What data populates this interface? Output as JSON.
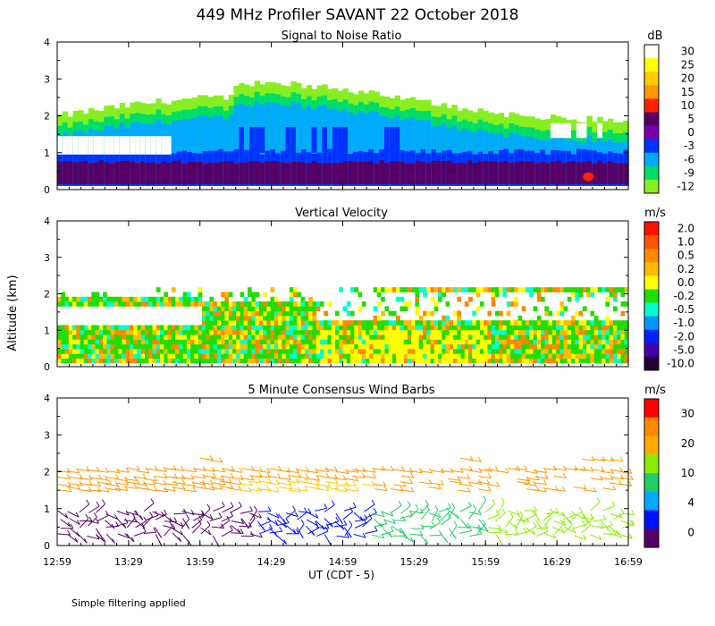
{
  "title": "449 MHz Profiler SAVANT 22 October 2018",
  "footnote": "Simple filtering applied",
  "ylabel": "Altitude (km)",
  "xlabel": "UT  (CDT - 5)",
  "x_ticks": [
    "12:59",
    "13:29",
    "13:59",
    "14:29",
    "14:59",
    "15:29",
    "15:59",
    "16:29",
    "16:59"
  ],
  "y_ticks": [
    "0",
    "1",
    "2",
    "3",
    "4"
  ],
  "chart_data": [
    {
      "type": "heatmap",
      "subtitle": "Signal to Noise Ratio",
      "unit": "dB",
      "x_range": [
        "12:59",
        "16:59"
      ],
      "y_range": [
        0,
        4
      ],
      "colorbar": {
        "labels": [
          "30",
          "25",
          "20",
          "15",
          "10",
          "5",
          "0",
          "-3",
          "-6",
          "-9",
          "-12"
        ],
        "colors": [
          "#ffffff",
          "#ffff00",
          "#ffcc00",
          "#ff9900",
          "#ff2200",
          "#550066",
          "#7700aa",
          "#0033ff",
          "#00aaff",
          "#00dd66",
          "#88ee22"
        ]
      },
      "layers": [
        {
          "label": "5",
          "bottom": 0.15,
          "top": 0.7,
          "color": "#550066"
        },
        {
          "label": "-3",
          "bottom": 0.1,
          "top": 0.9,
          "color": "#0033ff"
        },
        {
          "label": "-6",
          "bottom": 0.9,
          "top": 1.9,
          "color": "#00aaff"
        },
        {
          "label": "-9",
          "bottom": 1.8,
          "top": 2.3,
          "color": "#00dd66"
        },
        {
          "label": "-12",
          "bottom": 2.2,
          "top": 2.6,
          "color": "#88ee22"
        }
      ]
    },
    {
      "type": "heatmap",
      "subtitle": "Vertical Velocity",
      "unit": "m/s",
      "x_range": [
        "12:59",
        "16:59"
      ],
      "y_range": [
        0,
        4
      ],
      "colorbar": {
        "labels": [
          "2.0",
          "1.0",
          "0.5",
          "0.2",
          "0.0",
          "-0.2",
          "-0.5",
          "-1.0",
          "-2.0",
          "-5.0",
          "-10.0"
        ],
        "colors": [
          "#ff1100",
          "#ff5500",
          "#ff8800",
          "#ffbb00",
          "#ffff00",
          "#22dd00",
          "#00ffcc",
          "#0099ff",
          "#0022ff",
          "#4400aa",
          "#220033"
        ]
      }
    },
    {
      "type": "scatter",
      "subtitle": "5 Minute Consensus Wind Barbs",
      "unit": "m/s",
      "x_range": [
        "12:59",
        "16:59"
      ],
      "y_range": [
        0,
        4
      ],
      "colorbar": {
        "labels": [
          "30",
          "20",
          "10",
          "4",
          "0"
        ],
        "colors": [
          "#ff0000",
          "#ff8800",
          "#ffaa00",
          "#88ee00",
          "#22cc66",
          "#00aaff",
          "#0011ff",
          "#550066"
        ]
      }
    }
  ]
}
